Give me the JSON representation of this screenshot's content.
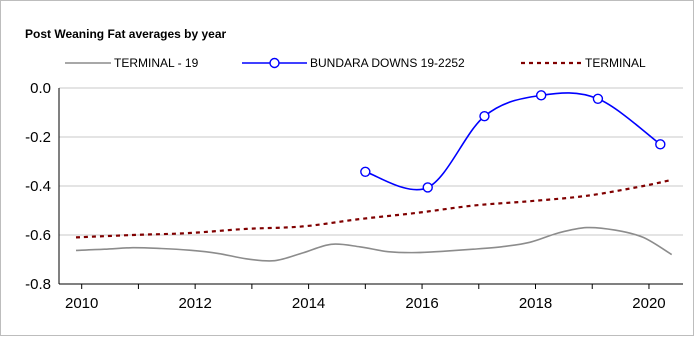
{
  "chart_data": {
    "type": "line",
    "title": "Post Weaning Fat averages by year",
    "xlabel": "",
    "ylabel": "",
    "xlim": [
      2009.6,
      2020.6
    ],
    "ylim": [
      -0.8,
      0.0
    ],
    "x_ticks": [
      "2010",
      "2012",
      "2014",
      "2016",
      "2018",
      "2020"
    ],
    "y_ticks": [
      "0.0",
      "-0.2",
      "-0.4",
      "-0.6",
      "-0.8"
    ],
    "grid": "horizontal",
    "legend_position": "top",
    "series": [
      {
        "name": "TERMINAL - 19",
        "color": "#8c8c8c",
        "style": "solid",
        "marker": "none",
        "x": [
          2009.9,
          2010.4,
          2010.9,
          2011.4,
          2011.9,
          2012.4,
          2012.9,
          2013.4,
          2013.9,
          2014.4,
          2014.9,
          2015.4,
          2015.9,
          2016.4,
          2016.9,
          2017.4,
          2017.9,
          2018.4,
          2018.9,
          2019.4,
          2019.9,
          2020.4
        ],
        "y": [
          -0.663,
          -0.658,
          -0.652,
          -0.655,
          -0.662,
          -0.675,
          -0.697,
          -0.705,
          -0.673,
          -0.638,
          -0.648,
          -0.668,
          -0.672,
          -0.666,
          -0.658,
          -0.648,
          -0.63,
          -0.592,
          -0.57,
          -0.58,
          -0.61,
          -0.68
        ]
      },
      {
        "name": "BUNDARA DOWNS 19-2252",
        "color": "#0000ff",
        "style": "solid",
        "marker": "circle",
        "x": [
          2015.0,
          2016.1,
          2017.1,
          2018.1,
          2019.1,
          2020.2
        ],
        "y": [
          -0.342,
          -0.406,
          -0.115,
          -0.03,
          -0.044,
          -0.23
        ]
      },
      {
        "name": "TERMINAL",
        "color": "#800000",
        "style": "dotted",
        "marker": "none",
        "x": [
          2009.9,
          2010.9,
          2011.9,
          2012.9,
          2013.9,
          2014.9,
          2015.9,
          2016.9,
          2017.9,
          2018.9,
          2019.9,
          2020.4
        ],
        "y": [
          -0.61,
          -0.6,
          -0.592,
          -0.575,
          -0.565,
          -0.535,
          -0.51,
          -0.48,
          -0.462,
          -0.44,
          -0.4,
          -0.375
        ]
      }
    ]
  }
}
